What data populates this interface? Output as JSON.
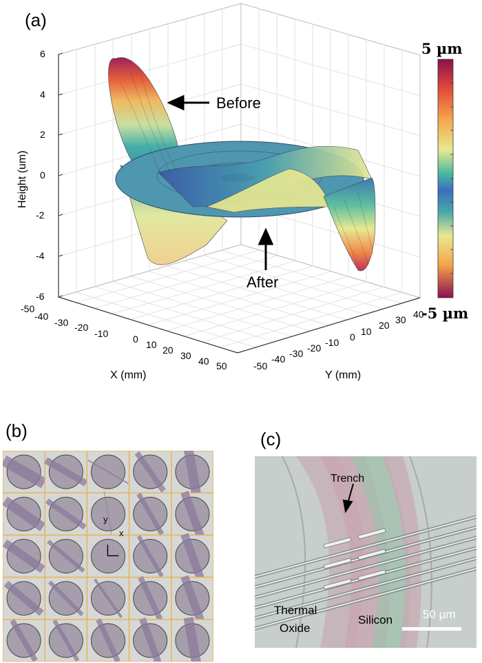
{
  "figure": {
    "panel_a": {
      "label": "(a)",
      "z_axis": {
        "title": "Height (um)",
        "ticks": [
          "6",
          "4",
          "2",
          "0",
          "-2",
          "-4",
          "-6"
        ]
      },
      "x_axis": {
        "title": "X (mm)",
        "ticks": [
          "-50",
          "-40",
          "-30",
          "-20",
          "-10",
          "0",
          "10",
          "20",
          "30",
          "40",
          "50"
        ]
      },
      "y_axis": {
        "title": "Y (mm)",
        "ticks": [
          "-50",
          "-40",
          "-30",
          "-20",
          "-10",
          "0",
          "10",
          "20",
          "30",
          "40"
        ]
      },
      "colorbar": {
        "top_label": "5 µm",
        "bottom_label": "-5 µm"
      },
      "annotations": {
        "before": "Before",
        "after": "After"
      }
    },
    "panel_b": {
      "label": "(b)",
      "axis_x": "x",
      "axis_y": "y"
    },
    "panel_c": {
      "label": "(c)",
      "trench": "Trench",
      "oxide_line1": "Thermal",
      "oxide_line2": "Oxide",
      "silicon": "Silicon",
      "scale_bar": "50 µm"
    }
  },
  "chart_data": {
    "type": "surface",
    "title": "",
    "zlabel": "Height (um)",
    "xlabel": "X (mm)",
    "ylabel": "Y (mm)",
    "zlim": [
      -6,
      6
    ],
    "xlim": [
      -50,
      50
    ],
    "ylim": [
      -50,
      50
    ],
    "colorbar_range_um": [
      -5,
      5
    ],
    "series": [
      {
        "name": "Before",
        "description_values": {
          "max_height_um": 6,
          "min_height_um": -5.5
        }
      },
      {
        "name": "After",
        "description_values": {
          "height_um": 0
        }
      }
    ]
  }
}
